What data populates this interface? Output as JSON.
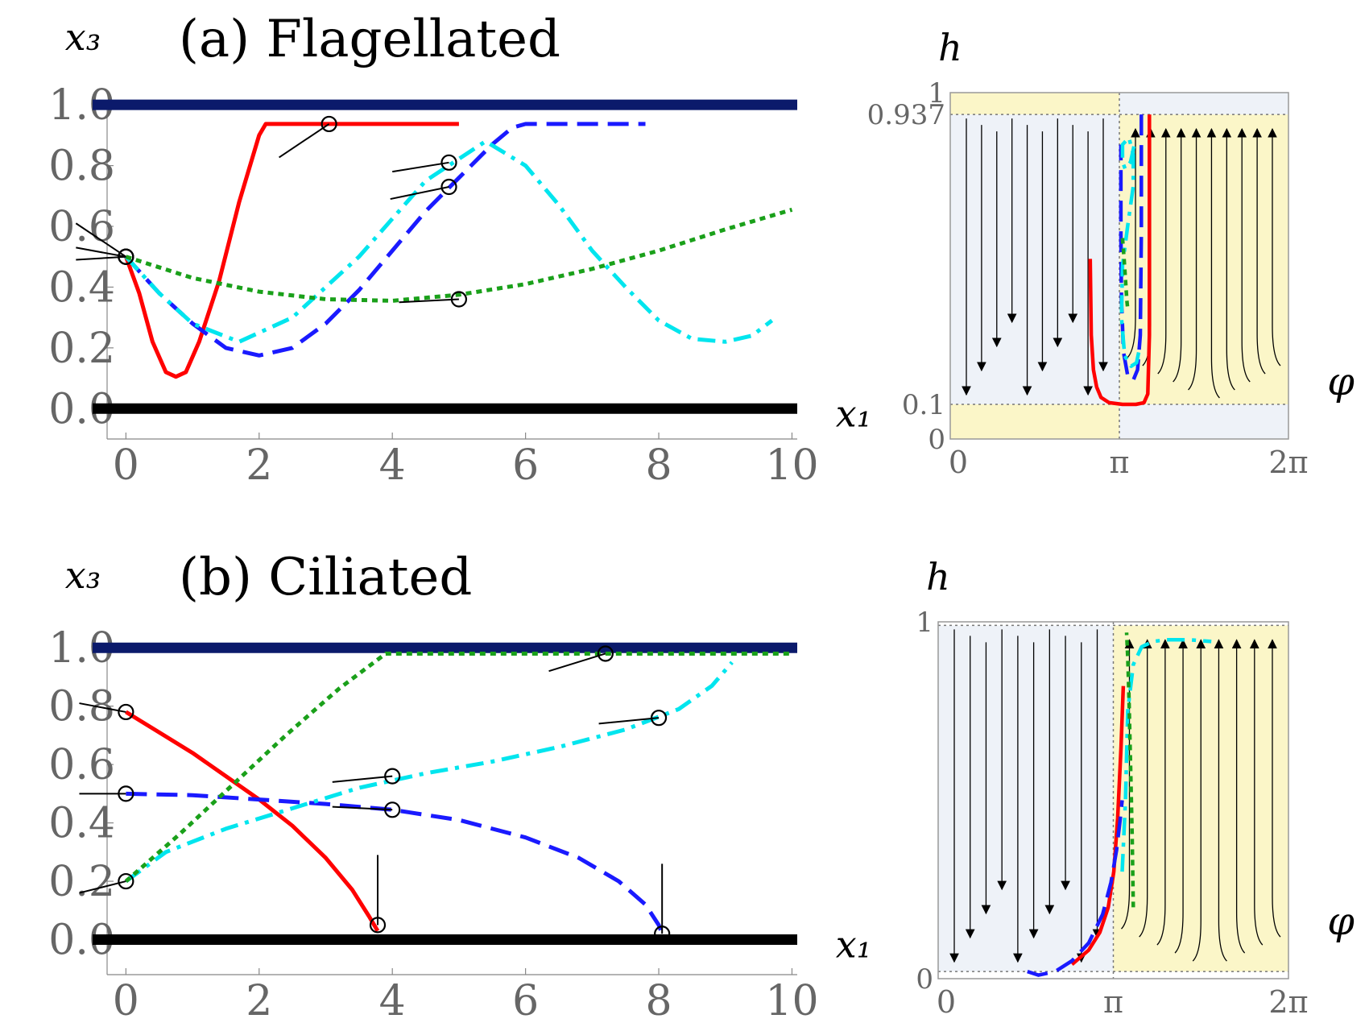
{
  "figure": {
    "panel_a_title": "(a) Flagellated",
    "panel_b_title": "(b) Ciliated"
  },
  "chart_data": [
    {
      "id": "a_traj",
      "type": "line",
      "title": "(a) Flagellated",
      "xlabel": "x₁",
      "ylabel": "x₃",
      "xlim": [
        -0.5,
        10.2
      ],
      "ylim": [
        -0.1,
        1.08
      ],
      "xticks": [
        "0",
        "2",
        "4",
        "6",
        "8",
        "10"
      ],
      "xtick_values": [
        0,
        2,
        4,
        6,
        8,
        10
      ],
      "yticks": [
        "0.0",
        "0.2",
        "0.4",
        "0.6",
        "0.8",
        "1.0"
      ],
      "ytick_values": [
        0,
        0.2,
        0.4,
        0.6,
        0.8,
        1.0
      ],
      "walls": [
        {
          "name": "top-wall",
          "y": 1.0,
          "color": "#0b1a6b"
        },
        {
          "name": "bottom-wall",
          "y": 0.0,
          "color": "#000000"
        }
      ],
      "series": [
        {
          "name": "red",
          "color": "#ff0000",
          "dash": "solid",
          "x": [
            0,
            0.2,
            0.4,
            0.6,
            0.75,
            0.9,
            1.1,
            1.4,
            1.7,
            2.0,
            2.1,
            5.0
          ],
          "y": [
            0.5,
            0.38,
            0.22,
            0.12,
            0.105,
            0.12,
            0.22,
            0.42,
            0.68,
            0.9,
            0.937,
            0.937
          ]
        },
        {
          "name": "blue",
          "color": "#1a1aff",
          "dash": "dashed",
          "x": [
            0,
            0.5,
            1.0,
            1.5,
            2.0,
            2.5,
            3.0,
            3.5,
            4.0,
            4.5,
            5.0,
            5.5,
            5.8,
            6.0,
            7.8
          ],
          "y": [
            0.5,
            0.38,
            0.28,
            0.2,
            0.175,
            0.2,
            0.28,
            0.39,
            0.52,
            0.65,
            0.76,
            0.87,
            0.925,
            0.937,
            0.937
          ]
        },
        {
          "name": "cyan",
          "color": "#00e5ee",
          "dash": "dashdot",
          "x": [
            0,
            0.5,
            1.0,
            1.7,
            2.5,
            3.5,
            4.5,
            5.4,
            6.0,
            6.5,
            7.0,
            7.5,
            8.0,
            8.5,
            9.0,
            9.4,
            9.7
          ],
          "y": [
            0.5,
            0.38,
            0.28,
            0.22,
            0.3,
            0.5,
            0.75,
            0.88,
            0.8,
            0.67,
            0.52,
            0.4,
            0.29,
            0.23,
            0.22,
            0.24,
            0.29
          ]
        },
        {
          "name": "green",
          "color": "#1aa01a",
          "dash": "dotted",
          "x": [
            0,
            1,
            2,
            3,
            4,
            5,
            6,
            7,
            8,
            9,
            10
          ],
          "y": [
            0.5,
            0.43,
            0.385,
            0.36,
            0.355,
            0.375,
            0.41,
            0.46,
            0.52,
            0.59,
            0.655
          ]
        }
      ],
      "markers": [
        {
          "series": "red",
          "x": 3.05,
          "y": 0.937,
          "dx": -0.75,
          "dy": -0.11
        },
        {
          "series": "cyan",
          "x": 4.85,
          "y": 0.81,
          "dx": -0.85,
          "dy": -0.03
        },
        {
          "series": "blue",
          "x": 4.85,
          "y": 0.73,
          "dx": -0.88,
          "dy": -0.04
        },
        {
          "series": "start",
          "x": 0,
          "y": 0.5,
          "dx": -0.75,
          "dy": 0.11
        },
        {
          "series": "start",
          "x": 0,
          "y": 0.5,
          "dx": -0.75,
          "dy": 0.03
        },
        {
          "series": "start",
          "x": 0,
          "y": 0.5,
          "dx": -0.75,
          "dy": -0.01
        },
        {
          "series": "green",
          "x": 5.0,
          "y": 0.36,
          "dx": -0.9,
          "dy": -0.01
        }
      ]
    },
    {
      "id": "a_phase",
      "type": "line",
      "xlabel": "φ",
      "ylabel": "h",
      "xlim": [
        0,
        6.2832
      ],
      "ylim": [
        0,
        1
      ],
      "xticks": [
        "0",
        "π",
        "2π"
      ],
      "xtick_values": [
        0,
        3.1416,
        6.2832
      ],
      "yticks": [
        "0",
        "0.1",
        "0.937",
        "1"
      ],
      "ytick_values": [
        0,
        0.1,
        0.937,
        1
      ],
      "series": [
        {
          "name": "red",
          "color": "#ff0000",
          "dash": "solid",
          "x": [
            2.6,
            2.62,
            2.66,
            2.72,
            2.8,
            2.95,
            3.2,
            3.45,
            3.6,
            3.67,
            3.7,
            3.7
          ],
          "y": [
            0.52,
            0.3,
            0.2,
            0.15,
            0.12,
            0.105,
            0.1,
            0.1,
            0.105,
            0.13,
            0.3,
            0.937
          ]
        },
        {
          "name": "blue",
          "color": "#1a1aff",
          "dash": "dashed",
          "x": [
            3.55,
            3.55,
            3.53,
            3.48,
            3.4,
            3.3,
            3.22,
            3.18,
            3.17,
            3.17
          ],
          "y": [
            0.937,
            0.6,
            0.3,
            0.2,
            0.17,
            0.18,
            0.25,
            0.4,
            0.6,
            0.85
          ]
        },
        {
          "name": "cyan",
          "color": "#00e5ee",
          "dash": "dashdot",
          "x": [
            3.5,
            3.46,
            3.36,
            3.24,
            3.18,
            3.2,
            3.3,
            3.4,
            3.4,
            3.32,
            3.2,
            3.2,
            3.25,
            3.35,
            3.42
          ],
          "y": [
            0.25,
            0.22,
            0.21,
            0.24,
            0.35,
            0.5,
            0.62,
            0.73,
            0.82,
            0.87,
            0.85,
            0.8,
            0.78,
            0.8,
            0.85
          ]
        },
        {
          "name": "green",
          "color": "#1aa01a",
          "dash": "dotted",
          "x": [
            3.2,
            3.23,
            3.26,
            3.28,
            3.3
          ],
          "y": [
            0.58,
            0.52,
            0.45,
            0.4,
            0.37
          ]
        }
      ]
    },
    {
      "id": "b_traj",
      "type": "line",
      "title": "(b) Ciliated",
      "xlabel": "x₁",
      "ylabel": "x₃",
      "xlim": [
        -0.5,
        10.2
      ],
      "ylim": [
        -0.12,
        1.1
      ],
      "xticks": [
        "0",
        "2",
        "4",
        "6",
        "8",
        "10"
      ],
      "xtick_values": [
        0,
        2,
        4,
        6,
        8,
        10
      ],
      "yticks": [
        "0.0",
        "0.2",
        "0.4",
        "0.6",
        "0.8",
        "1.0"
      ],
      "ytick_values": [
        0,
        0.2,
        0.4,
        0.6,
        0.8,
        1.0
      ],
      "walls": [
        {
          "name": "top-wall",
          "y": 1.0,
          "color": "#0b1a6b"
        },
        {
          "name": "bottom-wall",
          "y": 0.0,
          "color": "#000000"
        }
      ],
      "series": [
        {
          "name": "red",
          "color": "#ff0000",
          "dash": "solid",
          "x": [
            0,
            0.5,
            1.0,
            1.5,
            2.0,
            2.5,
            3.0,
            3.4,
            3.65,
            3.78
          ],
          "y": [
            0.78,
            0.71,
            0.64,
            0.56,
            0.48,
            0.39,
            0.28,
            0.17,
            0.08,
            0.03
          ]
        },
        {
          "name": "blue",
          "color": "#1a1aff",
          "dash": "dashed",
          "x": [
            0,
            1,
            2,
            3,
            4,
            5,
            6,
            6.8,
            7.4,
            7.8,
            8.0,
            8.05
          ],
          "y": [
            0.5,
            0.495,
            0.48,
            0.465,
            0.445,
            0.41,
            0.35,
            0.28,
            0.2,
            0.12,
            0.05,
            0.02
          ]
        },
        {
          "name": "cyan",
          "color": "#00e5ee",
          "dash": "dashdot",
          "x": [
            0,
            0.6,
            1.5,
            2.5,
            3.5,
            4.5,
            5.5,
            6.5,
            7.5,
            8.3,
            8.8,
            9.1
          ],
          "y": [
            0.2,
            0.3,
            0.38,
            0.45,
            0.52,
            0.57,
            0.61,
            0.66,
            0.72,
            0.79,
            0.87,
            0.95
          ]
        },
        {
          "name": "green",
          "color": "#1aa01a",
          "dash": "dotted",
          "x": [
            0,
            0.8,
            1.6,
            2.4,
            3.2,
            3.9,
            10.0
          ],
          "y": [
            0.2,
            0.36,
            0.53,
            0.7,
            0.86,
            0.98,
            0.98
          ]
        }
      ],
      "markers": [
        {
          "series": "red",
          "x": 0,
          "y": 0.78,
          "dx": -0.7,
          "dy": 0.03
        },
        {
          "series": "blue",
          "x": 0,
          "y": 0.5,
          "dx": -0.7,
          "dy": 0.0
        },
        {
          "series": "cyan",
          "x": 0,
          "y": 0.2,
          "dx": -0.7,
          "dy": -0.04
        },
        {
          "series": "green",
          "x": 7.2,
          "y": 0.98,
          "dx": -0.85,
          "dy": -0.06
        },
        {
          "series": "cyan",
          "x": 8.0,
          "y": 0.76,
          "dx": -0.9,
          "dy": -0.02
        },
        {
          "series": "cyan",
          "x": 4.0,
          "y": 0.56,
          "dx": -0.9,
          "dy": -0.02
        },
        {
          "series": "blue",
          "x": 4.0,
          "y": 0.445,
          "dx": -0.9,
          "dy": 0.01
        },
        {
          "series": "red",
          "x": 3.78,
          "y": 0.05,
          "dx": 0.0,
          "dy": 0.24
        },
        {
          "series": "blue",
          "x": 8.05,
          "y": 0.02,
          "dx": 0.0,
          "dy": 0.24
        }
      ]
    },
    {
      "id": "b_phase",
      "type": "line",
      "xlabel": "φ",
      "ylabel": "h",
      "xlim": [
        0,
        6.2832
      ],
      "ylim": [
        0,
        1
      ],
      "xticks": [
        "0",
        "π",
        "2π"
      ],
      "xtick_values": [
        0,
        3.1416,
        6.2832
      ],
      "yticks": [
        "0",
        "1"
      ],
      "ytick_values": [
        0,
        1
      ],
      "series": [
        {
          "name": "red",
          "color": "#ff0000",
          "dash": "solid",
          "x": [
            2.4,
            2.7,
            2.9,
            3.05,
            3.15,
            3.22,
            3.28,
            3.32
          ],
          "y": [
            0.04,
            0.08,
            0.13,
            0.2,
            0.3,
            0.45,
            0.65,
            0.82
          ]
        },
        {
          "name": "blue",
          "color": "#1a1aff",
          "dash": "dashed",
          "x": [
            1.6,
            1.8,
            2.1,
            2.4,
            2.7,
            2.95,
            3.1,
            3.2,
            3.26,
            3.3
          ],
          "y": [
            0.02,
            0.01,
            0.02,
            0.05,
            0.1,
            0.18,
            0.27,
            0.36,
            0.44,
            0.5
          ]
        },
        {
          "name": "cyan",
          "color": "#00e5ee",
          "dash": "dashdot",
          "x": [
            3.3,
            3.36,
            3.4,
            3.5,
            3.65,
            3.85,
            4.1,
            4.5,
            4.9
          ],
          "y": [
            0.3,
            0.5,
            0.75,
            0.88,
            0.93,
            0.945,
            0.95,
            0.95,
            0.945
          ]
        },
        {
          "name": "green",
          "color": "#1aa01a",
          "dash": "dotted",
          "x": [
            3.5,
            3.48,
            3.45,
            3.42,
            3.4,
            3.38
          ],
          "y": [
            0.2,
            0.4,
            0.6,
            0.8,
            0.9,
            0.97
          ]
        }
      ]
    }
  ]
}
